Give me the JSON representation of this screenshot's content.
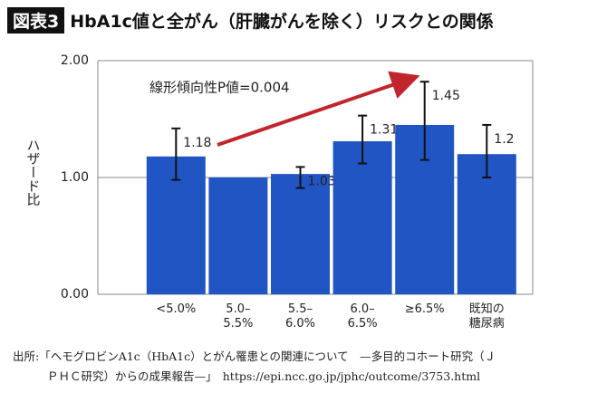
{
  "header": {
    "tag": "図表3",
    "title": "HbA1c値と全がん（肝臓がんを除く）リスクとの関係"
  },
  "chart_data": {
    "type": "bar",
    "y_label": "ハザード比",
    "annotation": "線形傾向性P値=0.004",
    "categories": [
      "<5.0%",
      "5.0–5.5%",
      "5.5–6.0%",
      "6.0–6.5%",
      "≥6.5%",
      "既知の糖尿病"
    ],
    "values": [
      1.18,
      1.0,
      1.03,
      1.31,
      1.45,
      1.2
    ],
    "value_labels": [
      "1.18",
      null,
      "1.03",
      "1.31",
      "1.45",
      "1.2"
    ],
    "error_high": [
      1.42,
      null,
      1.09,
      1.53,
      1.82,
      1.45
    ],
    "error_low": [
      0.98,
      null,
      0.91,
      1.12,
      1.15,
      1.0
    ],
    "color": "#2255c4",
    "arrow_color": "#c0262b",
    "ylim": [
      0,
      2
    ],
    "yticks": [
      {
        "value": 0,
        "label": "0.00"
      },
      {
        "value": 1,
        "label": "1.00"
      },
      {
        "value": 2,
        "label": "2.00"
      }
    ],
    "grid": true
  },
  "source": {
    "lines": [
      "出所:「ヘモグロビンA1c（HbA1c）とがん罹患との関連について　—多目的コホート研究（Ｊ",
      "ＰＨＣ研究）からの成果報告—」　https://epi.ncc.go.jp/jphc/outcome/3753.html"
    ]
  }
}
